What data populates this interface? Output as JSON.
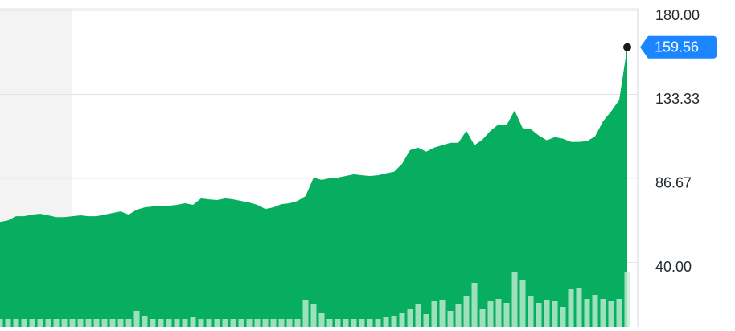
{
  "chart_data": {
    "type": "area",
    "color": "#00ab5a",
    "volume_color": "#c3ecd3",
    "marker_color": "#1b86ff",
    "grid": true,
    "ylim": [
      4,
      180
    ],
    "yticks": [
      {
        "value": 180,
        "label": "180.00"
      },
      {
        "value": 133.33,
        "label": "133.33"
      },
      {
        "value": 86.67,
        "label": "86.67"
      },
      {
        "value": 40,
        "label": "40.00"
      }
    ],
    "values": [
      62.4,
      63.3,
      65.6,
      65.6,
      66.5,
      67.0,
      66.1,
      65.1,
      65.1,
      65.6,
      66.1,
      65.6,
      65.6,
      66.5,
      67.4,
      68.3,
      66.5,
      69.2,
      70.5,
      71.0,
      71.0,
      71.4,
      71.9,
      72.8,
      71.9,
      75.5,
      75.0,
      74.6,
      75.5,
      75.0,
      74.1,
      73.2,
      71.9,
      69.6,
      70.5,
      72.3,
      72.8,
      74.1,
      76.8,
      87.1,
      85.8,
      86.7,
      87.1,
      88.0,
      88.9,
      88.4,
      88.0,
      88.4,
      89.4,
      90.3,
      94.7,
      102.4,
      103.7,
      101.5,
      103.7,
      105.1,
      106.4,
      106.4,
      113.1,
      105.1,
      108.2,
      113.1,
      116.7,
      116.3,
      124.4,
      114.5,
      114.0,
      110.5,
      107.8,
      109.6,
      108.7,
      106.9,
      106.9,
      107.3,
      110.0,
      118.5,
      123.9,
      130.2,
      159.56
    ],
    "volume": [
      10,
      10,
      10,
      10,
      10,
      10,
      10,
      10,
      10,
      10,
      10,
      10,
      10,
      10,
      10,
      10,
      10,
      20,
      14,
      10,
      10,
      10,
      10,
      10,
      12,
      10,
      10,
      10,
      10,
      10,
      10,
      10,
      10,
      10,
      10,
      10,
      10,
      10,
      33,
      28,
      18,
      10,
      10,
      10,
      10,
      10,
      10,
      10,
      12,
      14,
      18,
      22,
      28,
      16,
      32,
      33,
      20,
      28,
      38,
      55,
      22,
      32,
      35,
      30,
      68,
      58,
      38,
      30,
      33,
      32,
      25,
      47,
      48,
      35,
      40,
      35,
      32,
      35,
      68
    ]
  }
}
